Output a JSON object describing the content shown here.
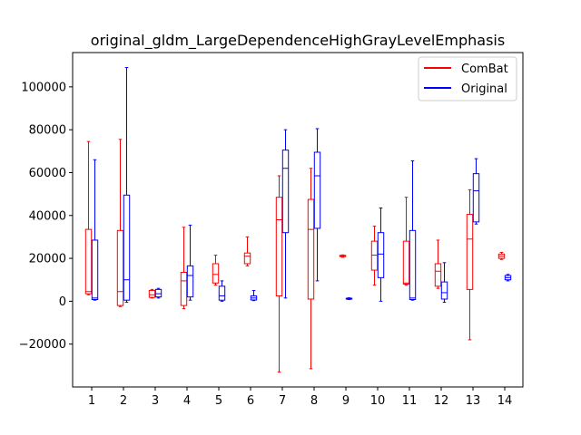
{
  "chart_data": {
    "type": "box",
    "title": "original_gldm_LargeDependenceHighGrayLevelEmphasis",
    "xlabel": "",
    "ylabel": "",
    "categories": [
      "1",
      "2",
      "3",
      "4",
      "5",
      "6",
      "7",
      "8",
      "9",
      "10",
      "11",
      "12",
      "13",
      "14"
    ],
    "ylim": [
      -40000,
      116000
    ],
    "yticks": [
      -20000,
      0,
      20000,
      40000,
      60000,
      80000,
      100000
    ],
    "ytick_labels": [
      "−20000",
      "0",
      "20000",
      "40000",
      "60000",
      "80000",
      "100000"
    ],
    "grid": false,
    "legend_position": "top-right",
    "series": [
      {
        "name": "ComBat",
        "color": "#ff0000",
        "boxes": [
          {
            "whislo": 3000,
            "q1": 3500,
            "med": 4500,
            "q3": 33500,
            "whishi": 74500
          },
          {
            "whislo": -2500,
            "q1": -2000,
            "med": 4500,
            "q3": 33000,
            "whishi": 75500
          },
          {
            "whislo": 1500,
            "q1": 1800,
            "med": 3000,
            "q3": 5000,
            "whishi": 5500
          },
          {
            "whislo": -3500,
            "q1": -2000,
            "med": 9500,
            "q3": 13500,
            "whishi": 34500
          },
          {
            "whislo": 7500,
            "q1": 8500,
            "med": 12500,
            "q3": 17500,
            "whishi": 21500
          },
          {
            "whislo": 16500,
            "q1": 17500,
            "med": 21000,
            "q3": 22500,
            "whishi": 30000
          },
          {
            "whislo": -33000,
            "q1": 2500,
            "med": 38000,
            "q3": 48500,
            "whishi": 58500
          },
          {
            "whislo": -31500,
            "q1": 1000,
            "med": 33500,
            "q3": 47500,
            "whishi": 62000
          },
          {
            "whislo": 20500,
            "q1": 20800,
            "med": 21000,
            "q3": 21400,
            "whishi": 21600
          },
          {
            "whislo": 7500,
            "q1": 14500,
            "med": 21500,
            "q3": 28000,
            "whishi": 35000
          },
          {
            "whislo": 7500,
            "q1": 8000,
            "med": 8500,
            "q3": 28000,
            "whishi": 48500
          },
          {
            "whislo": 6000,
            "q1": 7000,
            "med": 14000,
            "q3": 17500,
            "whishi": 28500
          },
          {
            "whislo": -18000,
            "q1": 5500,
            "med": 29000,
            "q3": 40500,
            "whishi": 52000
          },
          {
            "whislo": 19500,
            "q1": 20000,
            "med": 21000,
            "q3": 22000,
            "whishi": 22800
          }
        ]
      },
      {
        "name": "Original",
        "color": "#0000ff",
        "boxes": [
          {
            "whislo": 500,
            "q1": 800,
            "med": 1500,
            "q3": 28500,
            "whishi": 66000
          },
          {
            "whislo": -500,
            "q1": 500,
            "med": 10000,
            "q3": 49500,
            "whishi": 109000
          },
          {
            "whislo": 1500,
            "q1": 2000,
            "med": 3500,
            "q3": 5500,
            "whishi": 6000
          },
          {
            "whislo": 500,
            "q1": 2000,
            "med": 12000,
            "q3": 16500,
            "whishi": 35500
          },
          {
            "whislo": 0,
            "q1": 500,
            "med": 2500,
            "q3": 7000,
            "whishi": 9500
          },
          {
            "whislo": 300,
            "q1": 600,
            "med": 1500,
            "q3": 2500,
            "whishi": 5000
          },
          {
            "whislo": 1500,
            "q1": 32000,
            "med": 62000,
            "q3": 70500,
            "whishi": 80000
          },
          {
            "whislo": 9500,
            "q1": 34000,
            "med": 58500,
            "q3": 69500,
            "whishi": 80500
          },
          {
            "whislo": 800,
            "q1": 1000,
            "med": 1200,
            "q3": 1400,
            "whishi": 1600
          },
          {
            "whislo": 0,
            "q1": 11000,
            "med": 22000,
            "q3": 32000,
            "whishi": 43500
          },
          {
            "whislo": 500,
            "q1": 800,
            "med": 1500,
            "q3": 33000,
            "whishi": 65500
          },
          {
            "whislo": -500,
            "q1": 1000,
            "med": 4000,
            "q3": 9000,
            "whishi": 18000
          },
          {
            "whislo": 36000,
            "q1": 37000,
            "med": 51500,
            "q3": 59500,
            "whishi": 66500
          },
          {
            "whislo": 9500,
            "q1": 10000,
            "med": 11000,
            "q3": 12000,
            "whishi": 12500
          }
        ]
      }
    ]
  }
}
